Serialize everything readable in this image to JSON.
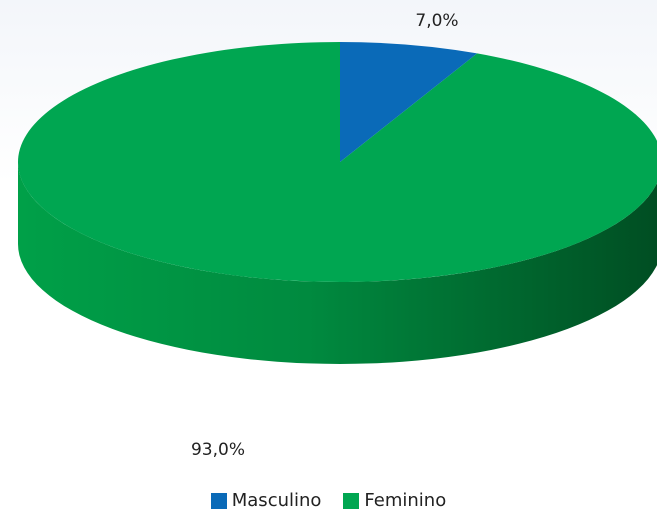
{
  "chart_data": {
    "type": "pie",
    "title": "",
    "categories": [
      "Masculino",
      "Feminino"
    ],
    "values": [
      7.0,
      93.0
    ],
    "labels": [
      "7,0%",
      "93,0%"
    ],
    "colors": [
      "#0a6ab8",
      "#00a651"
    ],
    "side_color": "#00863e",
    "legend_position": "bottom",
    "three_d": true
  },
  "legend": [
    {
      "label": "Masculino",
      "color": "#0a6ab8"
    },
    {
      "label": "Feminino",
      "color": "#00a651"
    }
  ]
}
